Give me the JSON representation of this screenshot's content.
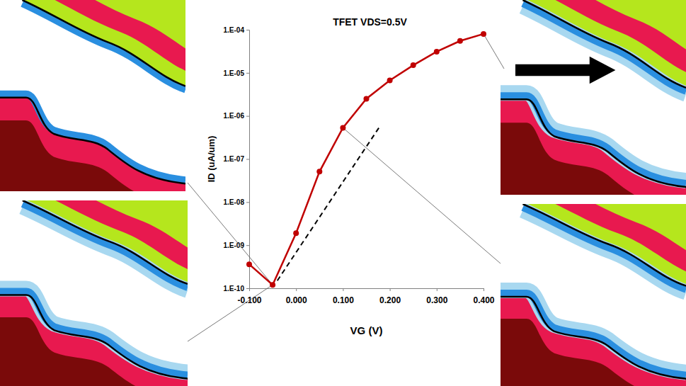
{
  "chart_data": {
    "type": "line",
    "title": "TFET VDS=0.5V",
    "x_label": "VG (V)",
    "y_label": "ID (uA/um)",
    "log": "y",
    "grid": false,
    "xlim": [
      -0.1,
      0.4
    ],
    "ylim": [
      1e-10,
      0.0001
    ],
    "xticks": [
      {
        "value": -0.1,
        "label": "-0.100"
      },
      {
        "value": 0,
        "label": "0.000"
      },
      {
        "value": 0.1,
        "label": "0.100"
      },
      {
        "value": 0.2,
        "label": "0.200"
      },
      {
        "value": 0.3,
        "label": "0.300"
      },
      {
        "value": 0.4,
        "label": "0.400"
      }
    ],
    "yticks": [
      {
        "value": 1e-10,
        "label": "1.E-10"
      },
      {
        "value": 1e-09,
        "label": "1.E-09"
      },
      {
        "value": 1e-08,
        "label": "1.E-08"
      },
      {
        "value": 1e-07,
        "label": "1.E-07"
      },
      {
        "value": 1e-06,
        "label": "1.E-06"
      },
      {
        "value": 1e-05,
        "label": "1.E-05"
      },
      {
        "value": 0.0001,
        "label": "1.E-04"
      }
    ],
    "series": [
      {
        "color": "#c00000",
        "marker": "circle",
        "line_style": "solid",
        "x": [
          -0.1,
          -0.05,
          0,
          0.05,
          0.1,
          0.15,
          0.2,
          0.25,
          0.3,
          0.35,
          0.4
        ],
        "values": [
          3.6e-10,
          1.2e-10,
          1.9e-09,
          5.1e-08,
          5.3e-07,
          2.5e-06,
          6.7e-06,
          1.5e-05,
          3.1e-05,
          5.5e-05,
          8e-05
        ]
      },
      {
        "color": "#000000",
        "marker": "none",
        "line_style": "dashed",
        "x": [
          -0.04,
          0.18
        ],
        "values": [
          1.5e-10,
          6e-07
        ]
      }
    ]
  }
}
